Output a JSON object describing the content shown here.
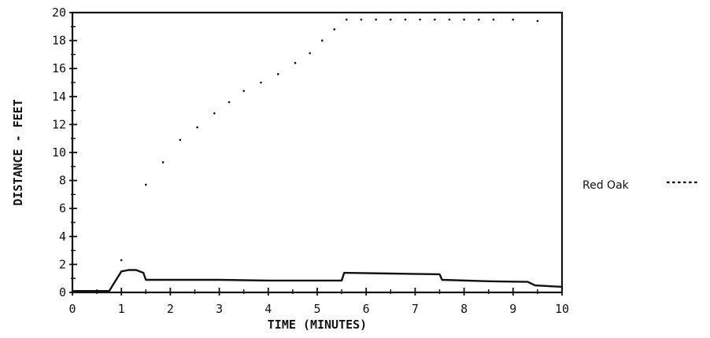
{
  "chart_data": {
    "type": "line",
    "title": "",
    "xlabel": "TIME (MINUTES)",
    "ylabel": "DISTANCE - FEET",
    "xlim": [
      0,
      10
    ],
    "ylim": [
      0,
      20
    ],
    "x_ticks": [
      "0",
      "1",
      "2",
      "3",
      "4",
      "5",
      "6",
      "7",
      "8",
      "9",
      "10"
    ],
    "y_ticks": [
      "0",
      "2",
      "4",
      "6",
      "8",
      "10",
      "12",
      "14",
      "16",
      "18",
      "20"
    ],
    "grid": false,
    "legend_placement": "right",
    "legend": [
      {
        "label": "Red Oak",
        "style": "dotted"
      }
    ],
    "series": [
      {
        "name": "Red Oak",
        "style": "dotted",
        "points": [
          [
            1.0,
            2.3
          ],
          [
            1.5,
            7.7
          ],
          [
            1.85,
            9.3
          ],
          [
            2.2,
            10.9
          ],
          [
            2.55,
            11.8
          ],
          [
            2.9,
            12.8
          ],
          [
            3.2,
            13.6
          ],
          [
            3.5,
            14.4
          ],
          [
            3.85,
            15.0
          ],
          [
            4.2,
            15.6
          ],
          [
            4.55,
            16.4
          ],
          [
            4.85,
            17.1
          ],
          [
            5.1,
            18.0
          ],
          [
            5.35,
            18.8
          ],
          [
            5.6,
            19.5
          ],
          [
            5.9,
            19.5
          ],
          [
            6.2,
            19.5
          ],
          [
            6.5,
            19.5
          ],
          [
            6.8,
            19.5
          ],
          [
            7.1,
            19.5
          ],
          [
            7.4,
            19.5
          ],
          [
            7.7,
            19.5
          ],
          [
            8.0,
            19.5
          ],
          [
            8.3,
            19.5
          ],
          [
            8.6,
            19.5
          ],
          [
            9.0,
            19.5
          ],
          [
            9.5,
            19.4
          ]
        ]
      },
      {
        "name": "",
        "style": "solid",
        "points": [
          [
            0,
            0.1
          ],
          [
            0.75,
            0.1
          ],
          [
            1.0,
            1.5
          ],
          [
            1.15,
            1.6
          ],
          [
            1.3,
            1.6
          ],
          [
            1.45,
            1.4
          ],
          [
            1.5,
            0.9
          ],
          [
            2.0,
            0.9
          ],
          [
            3.0,
            0.9
          ],
          [
            4.0,
            0.85
          ],
          [
            5.5,
            0.85
          ],
          [
            5.55,
            1.4
          ],
          [
            6.5,
            1.35
          ],
          [
            7.5,
            1.3
          ],
          [
            7.55,
            0.9
          ],
          [
            8.5,
            0.8
          ],
          [
            9.3,
            0.75
          ],
          [
            9.45,
            0.5
          ],
          [
            10,
            0.4
          ]
        ]
      }
    ]
  },
  "colors": {
    "ink": "#111111",
    "background": "#ffffff"
  }
}
